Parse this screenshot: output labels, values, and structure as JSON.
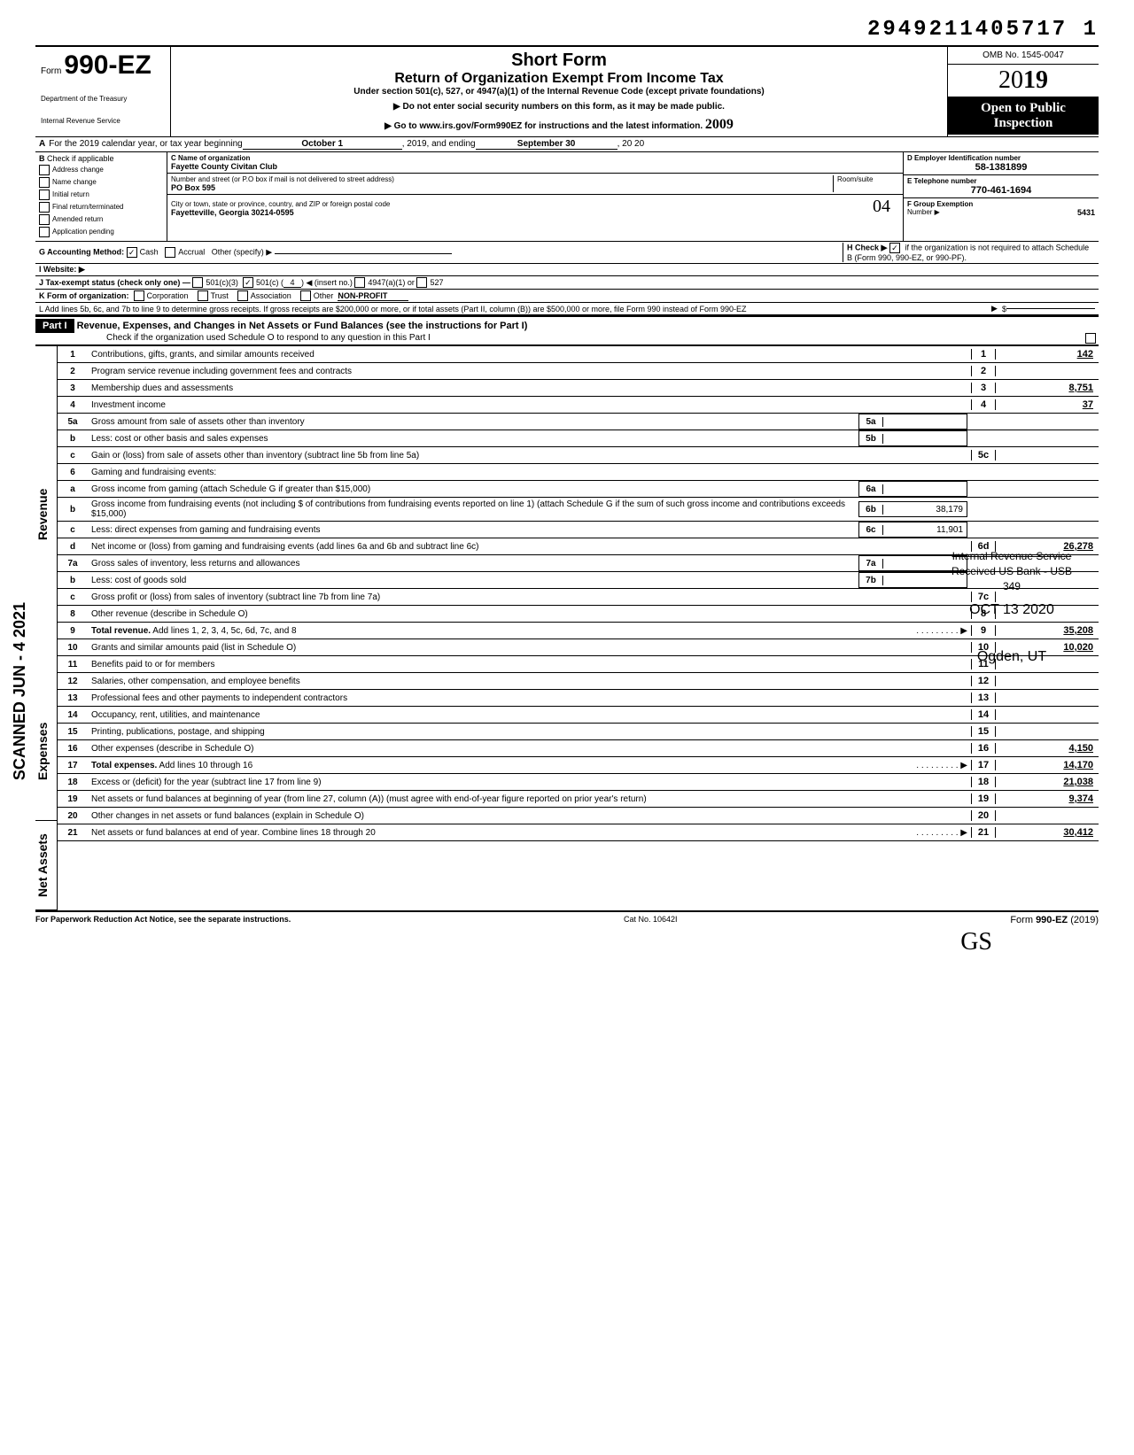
{
  "doc_id": "2949211405717 1",
  "header": {
    "form_label": "Form",
    "form_number": "990-EZ",
    "dept1": "Department of the Treasury",
    "dept2": "Internal Revenue Service",
    "title1": "Short Form",
    "title2": "Return of Organization Exempt From Income Tax",
    "title3": "Under section 501(c), 527, or 4947(a)(1) of the Internal Revenue Code (except private foundations)",
    "instr1": "▶ Do not enter social security numbers on this form, as it may be made public.",
    "instr2": "▶ Go to www.irs.gov/Form990EZ for instructions and the latest information.",
    "omb": "OMB No. 1545-0047",
    "year_prefix": "20",
    "year_bold": "19",
    "open1": "Open to Public",
    "open2": "Inspection",
    "handwritten_near_instr": "2009"
  },
  "section_a": {
    "label": "A",
    "text1": "For the 2019 calendar year, or tax year beginning",
    "begin_date": "October 1",
    "mid": ", 2019, and ending",
    "end_date": "September 30",
    "end_year": ", 20  20"
  },
  "col_b": {
    "label": "B",
    "heading": "Check if applicable",
    "items": [
      "Address change",
      "Name change",
      "Initial return",
      "Final return/terminated",
      "Amended return",
      "Application pending"
    ]
  },
  "col_c": {
    "label_name": "C  Name of organization",
    "org_name": "Fayette County Civitan Club",
    "label_addr": "Number and street (or P.O  box if mail is not delivered to street address)",
    "room": "Room/suite",
    "addr": "PO Box 595",
    "label_city": "City or town, state or province, country, and ZIP or foreign postal code",
    "city": "Fayetteville, Georgia 30214-0595",
    "handwritten_04": "04"
  },
  "col_d": {
    "label_ein": "D Employer Identification number",
    "ein": "58-1381899",
    "label_tel": "E Telephone number",
    "tel": "770-461-1694",
    "label_grp": "F Group Exemption",
    "label_grp2": "Number ▶",
    "grp": "5431"
  },
  "rows_ghi": {
    "g_label": "G  Accounting Method:",
    "g_cash": "Cash",
    "g_accrual": "Accrual",
    "g_other": "Other (specify) ▶",
    "h_label": "H Check ▶",
    "h_text": "if the organization is not required to attach Schedule B (Form 990, 990-EZ, or 990-PF).",
    "i_label": "I  Website: ▶",
    "j_label": "J  Tax-exempt status (check only one) —",
    "j_501c3": "501(c)(3)",
    "j_501c": "501(c) (",
    "j_501c_num": "4",
    "j_insert": ") ◀ (insert no.)",
    "j_4947": "4947(a)(1) or",
    "j_527": "527",
    "k_label": "K  Form of organization:",
    "k_corp": "Corporation",
    "k_trust": "Trust",
    "k_assoc": "Association",
    "k_other": "Other",
    "k_other_val": "NON-PROFIT",
    "l_text": "L  Add lines 5b, 6c, and 7b to line 9 to determine gross receipts. If gross receipts are $200,000 or more, or if total assets (Part II, column (B)) are $500,000 or more, file Form 990 instead of Form 990-EZ",
    "l_arrow": "▶",
    "l_dollar": "$"
  },
  "part1": {
    "label": "Part I",
    "title": "Revenue, Expenses, and Changes in Net Assets or Fund Balances (see the instructions for Part I)",
    "check_text": "Check if the organization used Schedule O to respond to any question in this Part I"
  },
  "side_labels": {
    "revenue": "Revenue",
    "expenses": "Expenses",
    "net_assets": "Net Assets",
    "scanned": "SCANNED JUN - 4 2021"
  },
  "lines": [
    {
      "n": "1",
      "text": "Contributions, gifts, grants, and similar amounts received",
      "box": "1",
      "amt": "142"
    },
    {
      "n": "2",
      "text": "Program service revenue including government fees and contracts",
      "box": "2",
      "amt": ""
    },
    {
      "n": "3",
      "text": "Membership dues and assessments",
      "box": "3",
      "amt": "8,751"
    },
    {
      "n": "4",
      "text": "Investment income",
      "box": "4",
      "amt": "37"
    },
    {
      "n": "5a",
      "text": "Gross amount from sale of assets other than inventory",
      "inner": "5a",
      "inner_val": "",
      "shaded": true
    },
    {
      "n": "b",
      "text": "Less: cost or other basis and sales expenses",
      "inner": "5b",
      "inner_val": "",
      "shaded": true
    },
    {
      "n": "c",
      "text": "Gain or (loss) from sale of assets other than inventory (subtract line 5b from line 5a)",
      "box": "5c",
      "amt": ""
    },
    {
      "n": "6",
      "text": "Gaming and fundraising events:",
      "shaded": true
    },
    {
      "n": "a",
      "text": "Gross income from gaming (attach Schedule G if greater than $15,000)",
      "inner": "6a",
      "inner_val": "",
      "shaded": true
    },
    {
      "n": "b",
      "text": "Gross income from fundraising events (not including  $                      of contributions from fundraising events reported on line 1) (attach Schedule G if the sum of such gross income and contributions exceeds $15,000)",
      "inner": "6b",
      "inner_val": "38,179",
      "shaded": true
    },
    {
      "n": "c",
      "text": "Less: direct expenses from gaming and fundraising events",
      "inner": "6c",
      "inner_val": "11,901",
      "shaded": true
    },
    {
      "n": "d",
      "text": "Net income or (loss) from gaming and fundraising events (add lines 6a and 6b and subtract line 6c)",
      "box": "6d",
      "amt": "26,278"
    },
    {
      "n": "7a",
      "text": "Gross sales of inventory, less returns and allowances",
      "inner": "7a",
      "inner_val": "",
      "shaded": true
    },
    {
      "n": "b",
      "text": "Less: cost of goods sold",
      "inner": "7b",
      "inner_val": "",
      "shaded": true
    },
    {
      "n": "c",
      "text": "Gross profit or (loss) from sales of inventory (subtract line 7b from line 7a)",
      "box": "7c",
      "amt": ""
    },
    {
      "n": "8",
      "text": "Other revenue (describe in Schedule O)",
      "box": "8",
      "amt": ""
    },
    {
      "n": "9",
      "text": "Total revenue. Add lines 1, 2, 3, 4, 5c, 6d, 7c, and 8",
      "box": "9",
      "amt": "35,208",
      "bold": true,
      "arrow": true
    },
    {
      "n": "10",
      "text": "Grants and similar amounts paid (list in Schedule O)",
      "box": "10",
      "amt": "10,020"
    },
    {
      "n": "11",
      "text": "Benefits paid to or for members",
      "box": "11",
      "amt": ""
    },
    {
      "n": "12",
      "text": "Salaries, other compensation, and employee benefits",
      "box": "12",
      "amt": ""
    },
    {
      "n": "13",
      "text": "Professional fees and other payments to independent contractors",
      "box": "13",
      "amt": ""
    },
    {
      "n": "14",
      "text": "Occupancy, rent, utilities, and maintenance",
      "box": "14",
      "amt": ""
    },
    {
      "n": "15",
      "text": "Printing, publications, postage, and shipping",
      "box": "15",
      "amt": ""
    },
    {
      "n": "16",
      "text": "Other expenses (describe in Schedule O)",
      "box": "16",
      "amt": "4,150"
    },
    {
      "n": "17",
      "text": "Total expenses. Add lines 10 through 16",
      "box": "17",
      "amt": "14,170",
      "bold": true,
      "arrow": true
    },
    {
      "n": "18",
      "text": "Excess or (deficit) for the year (subtract line 17 from line 9)",
      "box": "18",
      "amt": "21,038"
    },
    {
      "n": "19",
      "text": "Net assets or fund balances at beginning of year (from line 27, column (A)) (must agree with end-of-year figure reported on prior year's return)",
      "box": "19",
      "amt": "9,374"
    },
    {
      "n": "20",
      "text": "Other changes in net assets or fund balances (explain in Schedule O)",
      "box": "20",
      "amt": ""
    },
    {
      "n": "21",
      "text": "Net assets or fund balances at end of year. Combine lines 18 through 20",
      "box": "21",
      "amt": "30,412",
      "arrow": true
    }
  ],
  "stamp": {
    "line1": "Internal Revenue Service",
    "line2": "Received US Bank - USB",
    "line3": "349",
    "line4": "OCT 13 2020",
    "line5": "Ogden, UT"
  },
  "footer": {
    "left": "For Paperwork Reduction Act Notice, see the separate instructions.",
    "mid": "Cat  No. 10642I",
    "right_prefix": "Form",
    "right_form": "990-EZ",
    "right_year": "(2019)"
  },
  "initials": "GS"
}
